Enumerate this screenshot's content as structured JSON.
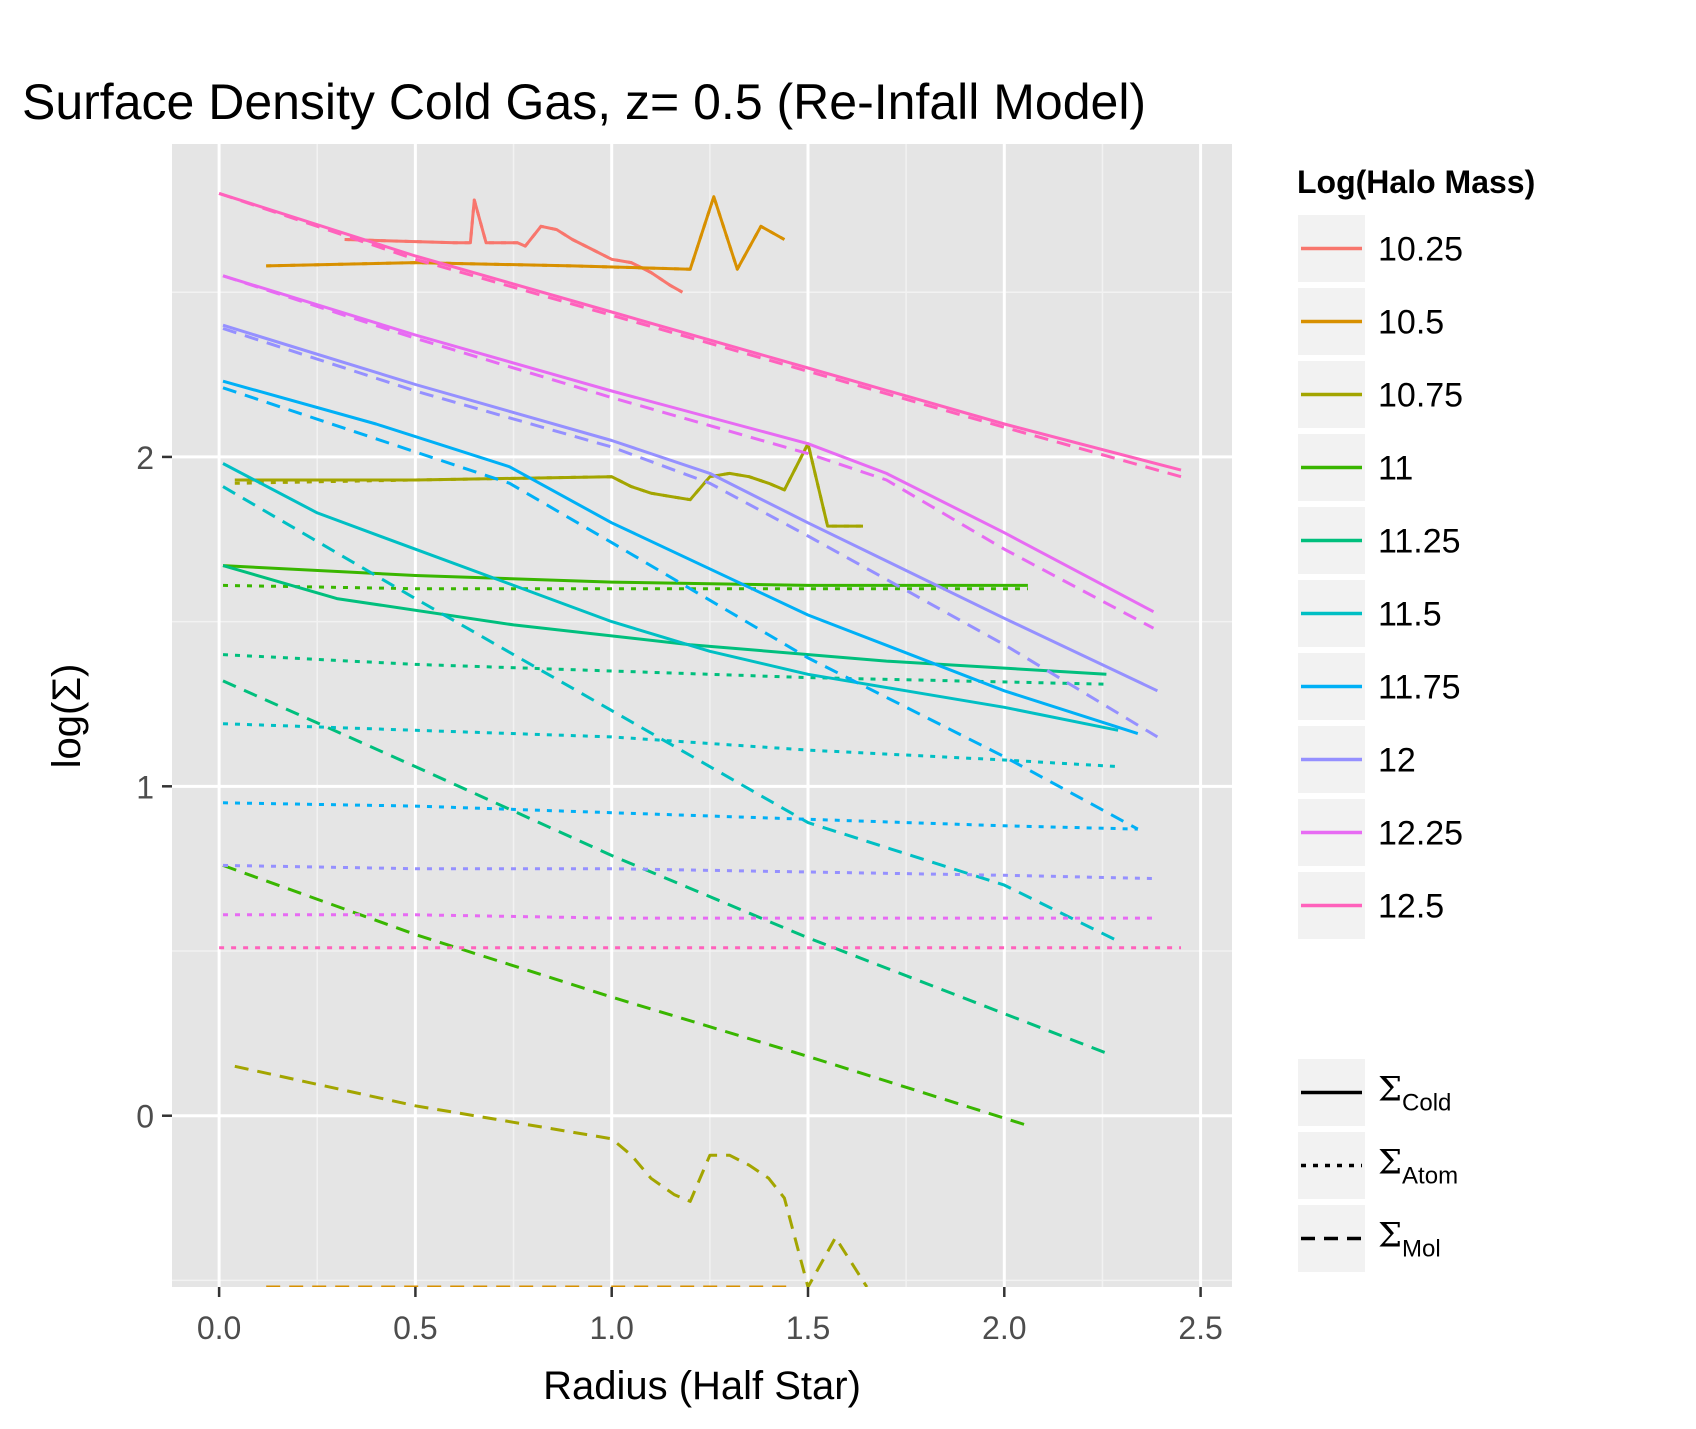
{
  "chart_data": {
    "type": "line",
    "title": "Surface Density Cold Gas, z= 0.5 (Re-Infall Model)",
    "xlabel": "Radius (Half Star)",
    "ylabel": "log(Σ)",
    "xlim": [
      -0.12,
      2.58
    ],
    "ylim": [
      -0.52,
      2.95
    ],
    "xticks": [
      0.0,
      0.5,
      1.0,
      1.5,
      2.0,
      2.5
    ],
    "xtick_labels": [
      "0.0",
      "0.5",
      "1.0",
      "1.5",
      "2.0",
      "2.5"
    ],
    "yticks": [
      0,
      1,
      2
    ],
    "ytick_labels": [
      "0",
      "1",
      "2"
    ],
    "grid": true,
    "legend": {
      "placement": "right",
      "color_title": "Log(Halo Mass)",
      "color_entries": [
        "10.25",
        "10.5",
        "10.75",
        "11",
        "11.25",
        "11.5",
        "11.75",
        "12",
        "12.25",
        "12.5"
      ],
      "linetype_entries": [
        {
          "symbol": "Σ",
          "sub": "Cold",
          "dash": "solid"
        },
        {
          "symbol": "Σ",
          "sub": "Atom",
          "dash": "dotted"
        },
        {
          "symbol": "Σ",
          "sub": "Mol",
          "dash": "dashed"
        }
      ]
    },
    "colors": {
      "10.25": "#F8766D",
      "10.5": "#D89000",
      "10.75": "#A3A500",
      "11": "#39B600",
      "11.25": "#00BF7D",
      "11.5": "#00BFC4",
      "11.75": "#00B0F6",
      "12": "#9590FF",
      "12.25": "#E76BF3",
      "12.5": "#FF62BC"
    },
    "series": [
      {
        "mass": "10.25",
        "component": "Cold",
        "points": [
          [
            0.32,
            2.66
          ],
          [
            0.6,
            2.65
          ],
          [
            0.64,
            2.65
          ],
          [
            0.65,
            2.78
          ],
          [
            0.68,
            2.65
          ],
          [
            0.76,
            2.65
          ],
          [
            0.78,
            2.64
          ],
          [
            0.82,
            2.7
          ],
          [
            0.86,
            2.69
          ],
          [
            0.9,
            2.66
          ],
          [
            0.95,
            2.63
          ],
          [
            1.0,
            2.6
          ],
          [
            1.05,
            2.59
          ],
          [
            1.1,
            2.56
          ],
          [
            1.15,
            2.52
          ],
          [
            1.18,
            2.5
          ]
        ]
      },
      {
        "mass": "10.25",
        "component": "Atom",
        "points": [
          [
            0.32,
            2.66
          ],
          [
            0.6,
            2.65
          ],
          [
            0.64,
            2.65
          ],
          [
            0.65,
            2.78
          ],
          [
            0.68,
            2.65
          ],
          [
            0.76,
            2.65
          ],
          [
            0.78,
            2.64
          ],
          [
            0.82,
            2.7
          ],
          [
            0.86,
            2.69
          ],
          [
            0.9,
            2.66
          ],
          [
            0.95,
            2.63
          ],
          [
            1.0,
            2.6
          ],
          [
            1.05,
            2.59
          ],
          [
            1.1,
            2.56
          ],
          [
            1.15,
            2.52
          ],
          [
            1.18,
            2.5
          ]
        ]
      },
      {
        "mass": "10.5",
        "component": "Cold",
        "points": [
          [
            0.12,
            2.58
          ],
          [
            0.5,
            2.59
          ],
          [
            0.9,
            2.58
          ],
          [
            1.2,
            2.57
          ],
          [
            1.26,
            2.79
          ],
          [
            1.32,
            2.57
          ],
          [
            1.38,
            2.7
          ],
          [
            1.44,
            2.66
          ]
        ]
      },
      {
        "mass": "10.5",
        "component": "Atom",
        "points": [
          [
            0.12,
            2.58
          ],
          [
            0.5,
            2.59
          ],
          [
            0.9,
            2.58
          ],
          [
            1.2,
            2.57
          ],
          [
            1.26,
            2.79
          ],
          [
            1.32,
            2.57
          ],
          [
            1.38,
            2.7
          ],
          [
            1.44,
            2.66
          ]
        ]
      },
      {
        "mass": "10.5",
        "component": "Mol",
        "points": [
          [
            0.12,
            -0.52
          ],
          [
            1.45,
            -0.52
          ]
        ]
      },
      {
        "mass": "10.75",
        "component": "Cold",
        "points": [
          [
            0.04,
            1.93
          ],
          [
            0.5,
            1.93
          ],
          [
            1.0,
            1.94
          ],
          [
            1.05,
            1.91
          ],
          [
            1.1,
            1.89
          ],
          [
            1.15,
            1.88
          ],
          [
            1.2,
            1.87
          ],
          [
            1.25,
            1.94
          ],
          [
            1.3,
            1.95
          ],
          [
            1.35,
            1.94
          ],
          [
            1.4,
            1.92
          ],
          [
            1.44,
            1.9
          ],
          [
            1.5,
            2.04
          ],
          [
            1.55,
            1.79
          ],
          [
            1.64,
            1.79
          ]
        ]
      },
      {
        "mass": "10.75",
        "component": "Atom",
        "points": [
          [
            0.04,
            1.92
          ],
          [
            0.5,
            1.93
          ],
          [
            1.0,
            1.94
          ],
          [
            1.05,
            1.91
          ],
          [
            1.1,
            1.89
          ],
          [
            1.15,
            1.88
          ],
          [
            1.2,
            1.87
          ],
          [
            1.25,
            1.94
          ],
          [
            1.3,
            1.95
          ],
          [
            1.35,
            1.94
          ],
          [
            1.4,
            1.92
          ],
          [
            1.44,
            1.9
          ],
          [
            1.5,
            2.04
          ],
          [
            1.55,
            1.79
          ],
          [
            1.64,
            1.79
          ]
        ]
      },
      {
        "mass": "10.75",
        "component": "Mol",
        "points": [
          [
            0.04,
            0.15
          ],
          [
            0.5,
            0.03
          ],
          [
            0.75,
            -0.02
          ],
          [
            1.0,
            -0.07
          ],
          [
            1.05,
            -0.12
          ],
          [
            1.1,
            -0.19
          ],
          [
            1.16,
            -0.24
          ],
          [
            1.2,
            -0.26
          ],
          [
            1.25,
            -0.12
          ],
          [
            1.3,
            -0.12
          ],
          [
            1.35,
            -0.15
          ],
          [
            1.4,
            -0.19
          ],
          [
            1.44,
            -0.25
          ],
          [
            1.5,
            -0.52
          ],
          [
            1.57,
            -0.37
          ],
          [
            1.65,
            -0.52
          ]
        ]
      },
      {
        "mass": "11",
        "component": "Cold",
        "points": [
          [
            0.01,
            1.67
          ],
          [
            0.5,
            1.64
          ],
          [
            1.0,
            1.62
          ],
          [
            1.5,
            1.61
          ],
          [
            2.06,
            1.61
          ]
        ]
      },
      {
        "mass": "11",
        "component": "Atom",
        "points": [
          [
            0.01,
            1.61
          ],
          [
            0.5,
            1.6
          ],
          [
            1.0,
            1.6
          ],
          [
            1.5,
            1.6
          ],
          [
            2.06,
            1.6
          ]
        ]
      },
      {
        "mass": "11",
        "component": "Mol",
        "points": [
          [
            0.01,
            0.76
          ],
          [
            0.5,
            0.55
          ],
          [
            1.0,
            0.36
          ],
          [
            1.5,
            0.18
          ],
          [
            2.06,
            -0.03
          ]
        ]
      },
      {
        "mass": "11.25",
        "component": "Cold",
        "points": [
          [
            0.01,
            1.67
          ],
          [
            0.3,
            1.57
          ],
          [
            0.75,
            1.49
          ],
          [
            1.2,
            1.43
          ],
          [
            1.7,
            1.38
          ],
          [
            2.26,
            1.34
          ]
        ]
      },
      {
        "mass": "11.25",
        "component": "Atom",
        "points": [
          [
            0.01,
            1.4
          ],
          [
            0.5,
            1.37
          ],
          [
            1.0,
            1.35
          ],
          [
            1.5,
            1.33
          ],
          [
            2.26,
            1.31
          ]
        ]
      },
      {
        "mass": "11.25",
        "component": "Mol",
        "points": [
          [
            0.01,
            1.32
          ],
          [
            0.5,
            1.06
          ],
          [
            1.0,
            0.79
          ],
          [
            1.5,
            0.54
          ],
          [
            2.26,
            0.19
          ]
        ]
      },
      {
        "mass": "11.5",
        "component": "Cold",
        "points": [
          [
            0.01,
            1.98
          ],
          [
            0.25,
            1.83
          ],
          [
            0.5,
            1.72
          ],
          [
            0.75,
            1.61
          ],
          [
            1.0,
            1.5
          ],
          [
            1.25,
            1.41
          ],
          [
            1.5,
            1.34
          ],
          [
            1.75,
            1.29
          ],
          [
            2.0,
            1.24
          ],
          [
            2.29,
            1.17
          ]
        ]
      },
      {
        "mass": "11.5",
        "component": "Atom",
        "points": [
          [
            0.01,
            1.19
          ],
          [
            0.5,
            1.17
          ],
          [
            1.0,
            1.15
          ],
          [
            1.5,
            1.11
          ],
          [
            2.0,
            1.08
          ],
          [
            2.29,
            1.06
          ]
        ]
      },
      {
        "mass": "11.5",
        "component": "Mol",
        "points": [
          [
            0.01,
            1.91
          ],
          [
            0.5,
            1.57
          ],
          [
            1.0,
            1.23
          ],
          [
            1.5,
            0.89
          ],
          [
            2.0,
            0.7
          ],
          [
            2.29,
            0.53
          ]
        ]
      },
      {
        "mass": "11.75",
        "component": "Cold",
        "points": [
          [
            0.01,
            2.23
          ],
          [
            0.4,
            2.1
          ],
          [
            0.74,
            1.97
          ],
          [
            1.0,
            1.8
          ],
          [
            1.5,
            1.52
          ],
          [
            2.0,
            1.29
          ],
          [
            2.34,
            1.16
          ]
        ]
      },
      {
        "mass": "11.75",
        "component": "Atom",
        "points": [
          [
            0.01,
            0.95
          ],
          [
            0.5,
            0.94
          ],
          [
            1.0,
            0.92
          ],
          [
            1.5,
            0.9
          ],
          [
            2.0,
            0.88
          ],
          [
            2.34,
            0.87
          ]
        ]
      },
      {
        "mass": "11.75",
        "component": "Mol",
        "points": [
          [
            0.01,
            2.21
          ],
          [
            0.74,
            1.92
          ],
          [
            1.0,
            1.74
          ],
          [
            1.5,
            1.39
          ],
          [
            2.0,
            1.09
          ],
          [
            2.34,
            0.87
          ]
        ]
      },
      {
        "mass": "12",
        "component": "Cold",
        "points": [
          [
            0.01,
            2.4
          ],
          [
            0.5,
            2.22
          ],
          [
            1.0,
            2.05
          ],
          [
            1.25,
            1.95
          ],
          [
            1.5,
            1.8
          ],
          [
            2.0,
            1.51
          ],
          [
            2.39,
            1.29
          ]
        ]
      },
      {
        "mass": "12",
        "component": "Atom",
        "points": [
          [
            0.01,
            0.76
          ],
          [
            0.5,
            0.75
          ],
          [
            1.0,
            0.75
          ],
          [
            1.5,
            0.74
          ],
          [
            2.0,
            0.73
          ],
          [
            2.39,
            0.72
          ]
        ]
      },
      {
        "mass": "12",
        "component": "Mol",
        "points": [
          [
            0.01,
            2.39
          ],
          [
            0.5,
            2.2
          ],
          [
            1.0,
            2.03
          ],
          [
            1.25,
            1.92
          ],
          [
            1.5,
            1.76
          ],
          [
            2.0,
            1.43
          ],
          [
            2.39,
            1.15
          ]
        ]
      },
      {
        "mass": "12.25",
        "component": "Cold",
        "points": [
          [
            0.01,
            2.55
          ],
          [
            0.5,
            2.37
          ],
          [
            1.0,
            2.2
          ],
          [
            1.5,
            2.04
          ],
          [
            1.7,
            1.95
          ],
          [
            2.0,
            1.77
          ],
          [
            2.38,
            1.53
          ]
        ]
      },
      {
        "mass": "12.25",
        "component": "Atom",
        "points": [
          [
            0.01,
            0.61
          ],
          [
            0.5,
            0.61
          ],
          [
            1.0,
            0.6
          ],
          [
            1.5,
            0.6
          ],
          [
            2.0,
            0.6
          ],
          [
            2.38,
            0.6
          ]
        ]
      },
      {
        "mass": "12.25",
        "component": "Mol",
        "points": [
          [
            0.01,
            2.55
          ],
          [
            0.5,
            2.36
          ],
          [
            1.0,
            2.18
          ],
          [
            1.5,
            2.01
          ],
          [
            1.7,
            1.93
          ],
          [
            2.0,
            1.72
          ],
          [
            2.38,
            1.48
          ]
        ]
      },
      {
        "mass": "12.5",
        "component": "Cold",
        "points": [
          [
            0.0,
            2.8
          ],
          [
            0.5,
            2.61
          ],
          [
            1.0,
            2.44
          ],
          [
            1.5,
            2.27
          ],
          [
            2.0,
            2.1
          ],
          [
            2.45,
            1.96
          ]
        ]
      },
      {
        "mass": "12.5",
        "component": "Atom",
        "points": [
          [
            0.0,
            0.51
          ],
          [
            0.5,
            0.51
          ],
          [
            1.0,
            0.51
          ],
          [
            1.5,
            0.51
          ],
          [
            2.0,
            0.51
          ],
          [
            2.45,
            0.51
          ]
        ]
      },
      {
        "mass": "12.5",
        "component": "Mol",
        "points": [
          [
            0.0,
            2.8
          ],
          [
            0.5,
            2.6
          ],
          [
            1.0,
            2.43
          ],
          [
            1.5,
            2.26
          ],
          [
            2.0,
            2.09
          ],
          [
            2.45,
            1.94
          ]
        ]
      }
    ]
  }
}
